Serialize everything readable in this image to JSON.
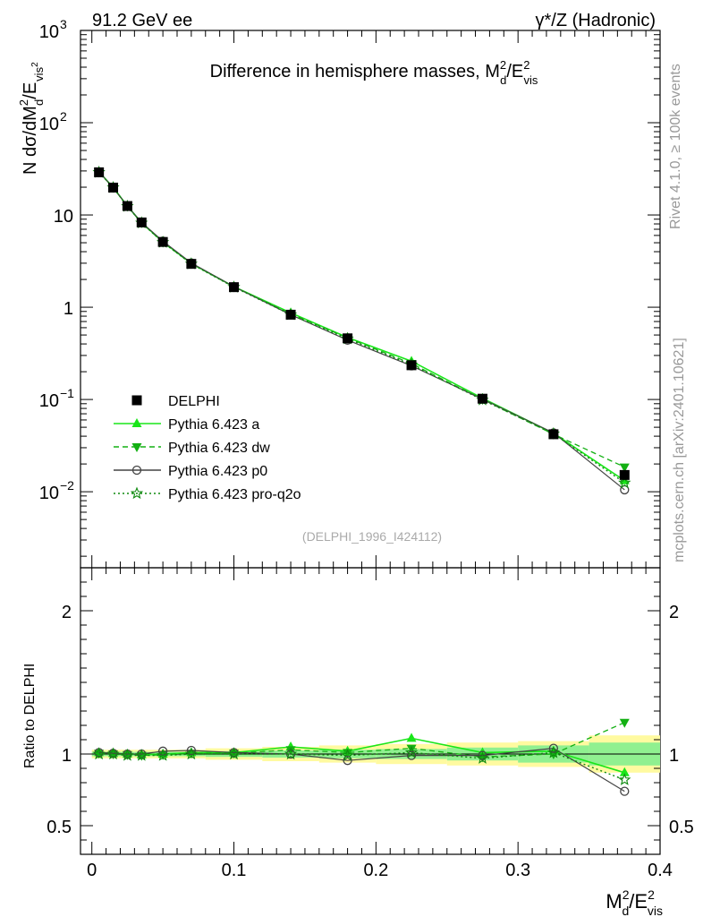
{
  "header": {
    "left": "91.2 GeV ee",
    "right": "γ*/Z (Hadronic)"
  },
  "side_labels": {
    "rivet": "Rivet 4.1.0, ≥ 100k events",
    "mcplots": "mcplots.cern.ch [arXiv:2401.10621]"
  },
  "chart_data": [
    {
      "type": "line",
      "title": "Difference in hemisphere masses, M_d^2/E_vis^2",
      "ylabel": "N  dσ/dM_d^2/E_vis^2",
      "yscale": "log",
      "ylim": [
        0.0015,
        1000
      ],
      "xlim": [
        -0.008,
        0.4
      ],
      "analysis_tag": "(DELPHI_1996_I424112)",
      "x": [
        0.005,
        0.015,
        0.025,
        0.035,
        0.05,
        0.07,
        0.1,
        0.14,
        0.18,
        0.225,
        0.275,
        0.325,
        0.375
      ],
      "series": [
        {
          "name": "DELPHI",
          "values": [
            29.0,
            19.8,
            12.5,
            8.3,
            5.1,
            2.95,
            1.65,
            0.83,
            0.46,
            0.235,
            0.102,
            0.042,
            0.0152
          ]
        },
        {
          "name": "Pythia 6.423 a",
          "values": [
            29.3,
            19.9,
            12.5,
            8.25,
            5.1,
            2.98,
            1.67,
            0.87,
            0.47,
            0.26,
            0.103,
            0.043,
            0.0132
          ]
        },
        {
          "name": "Pythia 6.423 dw",
          "values": [
            29.1,
            19.8,
            12.4,
            8.2,
            5.05,
            2.97,
            1.66,
            0.85,
            0.465,
            0.245,
            0.1,
            0.042,
            0.0185
          ]
        },
        {
          "name": "Pythia 6.423 p0",
          "values": [
            29.2,
            19.9,
            12.5,
            8.3,
            5.2,
            3.02,
            1.67,
            0.83,
            0.44,
            0.232,
            0.101,
            0.0435,
            0.0105
          ]
        },
        {
          "name": "Pythia 6.423 pro-q2o",
          "values": [
            29.0,
            19.8,
            12.4,
            8.2,
            5.05,
            2.95,
            1.65,
            0.83,
            0.455,
            0.238,
            0.099,
            0.0425,
            0.0125
          ]
        }
      ]
    },
    {
      "type": "line",
      "xlabel": "M_d^2/E_vis^2",
      "ylabel": "Ratio to DELPHI",
      "ylim": [
        0.3,
        2.3
      ],
      "xlim": [
        -0.008,
        0.4
      ],
      "x_ticks": [
        "0",
        "0.1",
        "0.2",
        "0.3",
        "0.4"
      ],
      "y_ticks": [
        "0.5",
        "1",
        "2"
      ],
      "x": [
        0.005,
        0.015,
        0.025,
        0.035,
        0.05,
        0.07,
        0.1,
        0.14,
        0.18,
        0.225,
        0.275,
        0.325,
        0.375
      ],
      "band_edges": [
        0,
        0.01,
        0.02,
        0.03,
        0.04,
        0.06,
        0.08,
        0.12,
        0.16,
        0.2,
        0.25,
        0.3,
        0.35,
        0.4
      ],
      "band_stat": [
        0.015,
        0.015,
        0.015,
        0.015,
        0.015,
        0.015,
        0.02,
        0.025,
        0.03,
        0.035,
        0.045,
        0.06,
        0.08
      ],
      "band_total": [
        0.03,
        0.03,
        0.03,
        0.03,
        0.03,
        0.03,
        0.04,
        0.05,
        0.06,
        0.07,
        0.08,
        0.09,
        0.13
      ],
      "series": [
        {
          "name": "Pythia 6.423 a",
          "values": [
            1.01,
            1.005,
            1.0,
            0.995,
            1.0,
            1.01,
            1.01,
            1.05,
            1.02,
            1.11,
            1.01,
            1.02,
            0.87
          ]
        },
        {
          "name": "Pythia 6.423 dw",
          "values": [
            1.005,
            1.0,
            0.995,
            0.99,
            0.995,
            1.005,
            1.005,
            1.03,
            1.01,
            1.04,
            0.98,
            1.0,
            1.22
          ]
        },
        {
          "name": "Pythia 6.423 p0",
          "values": [
            1.01,
            1.005,
            1.0,
            1.0,
            1.02,
            1.025,
            1.01,
            1.0,
            0.955,
            0.99,
            0.99,
            1.04,
            0.74
          ]
        },
        {
          "name": "Pythia 6.423 pro-q2o",
          "values": [
            1.0,
            1.0,
            0.99,
            0.99,
            0.99,
            1.0,
            1.0,
            1.0,
            0.99,
            1.01,
            0.97,
            1.01,
            0.82
          ]
        }
      ]
    }
  ],
  "styles": {
    "data_color": "#000000",
    "a_color": "#19e619",
    "dw_color": "#13b013",
    "p0_color": "#444444",
    "q2o_color": "#0f8a0f",
    "band_total_color": "#fffaa0",
    "band_stat_color": "#90f090"
  }
}
